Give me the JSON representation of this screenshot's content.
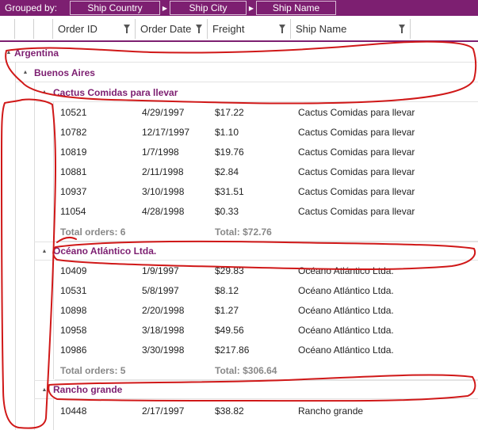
{
  "groupbar": {
    "label": "Grouped by:",
    "chips": [
      "Ship Country",
      "Ship City",
      "Ship Name"
    ]
  },
  "columns": [
    "Order ID",
    "Order Date",
    "Freight",
    "Ship Name"
  ],
  "country": "Argentina",
  "city": "Buenos Aires",
  "groups": [
    {
      "name": "Cactus Comidas para llevar",
      "rows": [
        [
          "10521",
          "4/29/1997",
          "$17.22",
          "Cactus Comidas para llevar"
        ],
        [
          "10782",
          "12/17/1997",
          "$1.10",
          "Cactus Comidas para llevar"
        ],
        [
          "10819",
          "1/7/1998",
          "$19.76",
          "Cactus Comidas para llevar"
        ],
        [
          "10881",
          "2/11/1998",
          "$2.84",
          "Cactus Comidas para llevar"
        ],
        [
          "10937",
          "3/10/1998",
          "$31.51",
          "Cactus Comidas para llevar"
        ],
        [
          "11054",
          "4/28/1998",
          "$0.33",
          "Cactus Comidas para llevar"
        ]
      ],
      "total_orders": "Total orders: 6",
      "total": "Total: $72.76"
    },
    {
      "name": "Océano Atlántico Ltda.",
      "rows": [
        [
          "10409",
          "1/9/1997",
          "$29.83",
          "Océano Atlántico Ltda."
        ],
        [
          "10531",
          "5/8/1997",
          "$8.12",
          "Océano Atlántico Ltda."
        ],
        [
          "10898",
          "2/20/1998",
          "$1.27",
          "Océano Atlántico Ltda."
        ],
        [
          "10958",
          "3/18/1998",
          "$49.56",
          "Océano Atlántico Ltda."
        ],
        [
          "10986",
          "3/30/1998",
          "$217.86",
          "Océano Atlántico Ltda."
        ]
      ],
      "total_orders": "Total orders: 5",
      "total": "Total: $306.64"
    },
    {
      "name": "Rancho grande",
      "rows": [
        [
          "10448",
          "2/17/1997",
          "$38.82",
          "Rancho grande"
        ]
      ]
    }
  ],
  "colors": {
    "accent": "#7d1f71",
    "annotation": "#d01818"
  }
}
